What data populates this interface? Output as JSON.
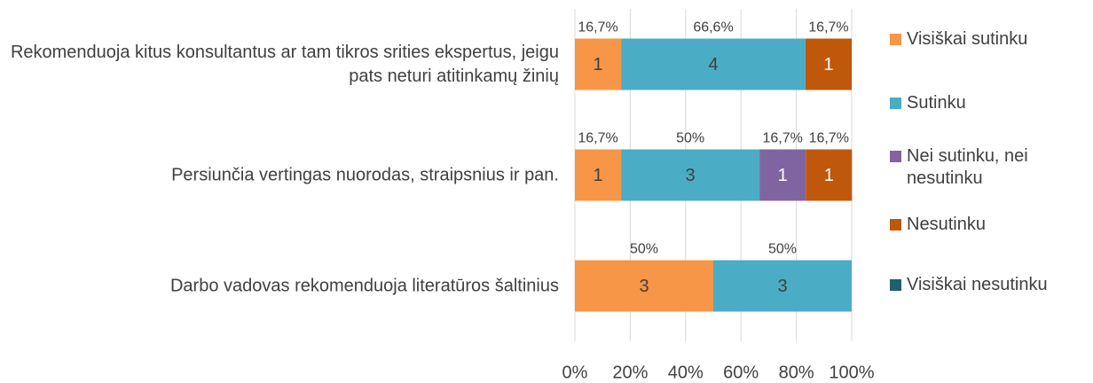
{
  "chart_data": {
    "type": "bar",
    "orientation": "horizontal",
    "stacked": true,
    "categories": [
      "Rekomenduoja kitus konsultantus ar tam tikros srities ekspertus, jeigu pats neturi atitinkamų žinių",
      "Persiunčia vertingas nuorodas, straipsnius ir pan.",
      "Darbo vadovas rekomenduoja literatūros šaltinius"
    ],
    "series": [
      {
        "name": "Visiškai sutinku",
        "color": "#f79646",
        "values": [
          16.7,
          16.7,
          50
        ],
        "value_labels": [
          "16,7%",
          "16,7%",
          "50%"
        ],
        "counts": [
          1,
          1,
          3
        ]
      },
      {
        "name": "Sutinku",
        "color": "#4bacc6",
        "values": [
          66.6,
          50,
          50
        ],
        "value_labels": [
          "66,6%",
          "50%",
          "50%"
        ],
        "counts": [
          4,
          3,
          3
        ]
      },
      {
        "name": "Nei sutinku, nei nesutinku",
        "color": "#8064a2",
        "values": [
          null,
          16.7,
          null
        ],
        "value_labels": [
          null,
          "16,7%",
          null
        ],
        "counts": [
          null,
          1,
          null
        ]
      },
      {
        "name": "Nesutinku",
        "color": "#c0580c",
        "values": [
          16.7,
          16.7,
          null
        ],
        "value_labels": [
          "16,7%",
          "16,7%",
          null
        ],
        "counts": [
          1,
          1,
          null
        ]
      },
      {
        "name": "Visiškai nesutinku",
        "color": "#215f6e",
        "values": [
          null,
          null,
          null
        ],
        "value_labels": [
          null,
          null,
          null
        ],
        "counts": [
          null,
          null,
          null
        ]
      }
    ],
    "xlim": [
      0,
      100
    ],
    "xticks": [
      {
        "value": 0,
        "label": "0%"
      },
      {
        "value": 20,
        "label": "20%"
      },
      {
        "value": 40,
        "label": "40%"
      },
      {
        "value": 60,
        "label": "60%"
      },
      {
        "value": 80,
        "label": "80%"
      },
      {
        "value": 100,
        "label": "100%"
      }
    ],
    "grid": true,
    "legend": "right"
  }
}
